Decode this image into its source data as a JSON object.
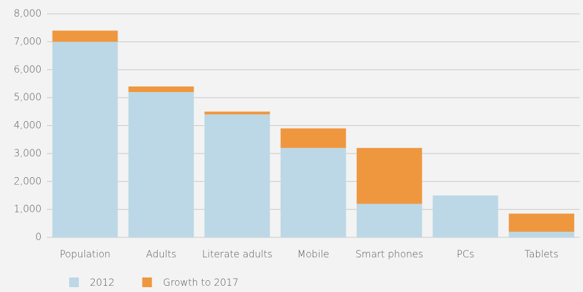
{
  "chart_data": {
    "type": "stacked_bar",
    "categories": [
      "Population",
      "Adults",
      "Literate adults",
      "Mobile",
      "Smart phones",
      "PCs",
      "Tablets"
    ],
    "series": [
      {
        "name": "2012",
        "color": "#bcd8e6",
        "values": [
          7000,
          5200,
          4400,
          3200,
          1200,
          1500,
          200
        ]
      },
      {
        "name": "Growth to 2017",
        "color": "#ef973f",
        "values": [
          400,
          200,
          100,
          700,
          2000,
          0,
          650
        ]
      }
    ],
    "ylim": [
      0,
      8000
    ],
    "yticks": [
      0,
      {
        "value": 1000,
        "label": "1,000"
      },
      {
        "value": 2000,
        "label": "2,000"
      },
      {
        "value": 3000,
        "label": "3,000"
      },
      {
        "value": 4000,
        "label": "4,000"
      },
      {
        "value": 5000,
        "label": "5,000"
      },
      {
        "value": 6000,
        "label": "6,000"
      },
      {
        "value": 7000,
        "label": "7,000"
      },
      {
        "value": 8000,
        "label": "8,000"
      }
    ],
    "grid": true,
    "legend": "bottom"
  }
}
